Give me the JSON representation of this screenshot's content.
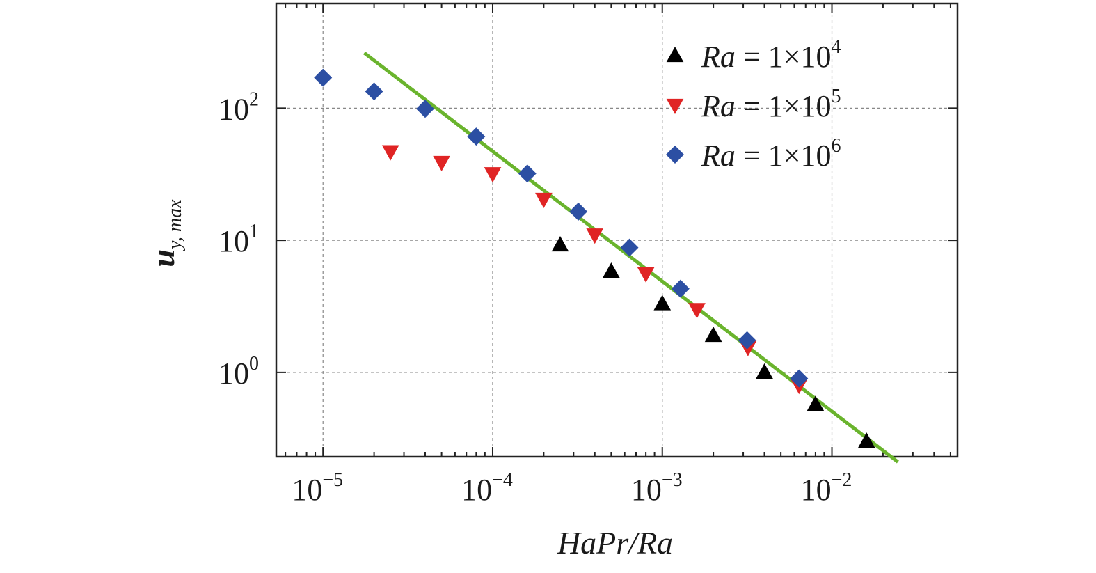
{
  "chart_data": {
    "type": "scatter",
    "xlabel": "HaPr/Ra",
    "ylabel_main": "u",
    "ylabel_sub": "y, max",
    "x_scale": "log",
    "y_scale": "log",
    "xlim": [
      5.3e-06,
      0.055
    ],
    "ylim": [
      0.23,
      620
    ],
    "x_ticks": [
      {
        "value": 1e-05,
        "base": "10",
        "exp": "−5"
      },
      {
        "value": 0.0001,
        "base": "10",
        "exp": "−4"
      },
      {
        "value": 0.001,
        "base": "10",
        "exp": "−3"
      },
      {
        "value": 0.01,
        "base": "10",
        "exp": "−2"
      }
    ],
    "y_ticks": [
      {
        "value": 1,
        "base": "10",
        "exp": "0"
      },
      {
        "value": 10,
        "base": "10",
        "exp": "1"
      },
      {
        "value": 100,
        "base": "10",
        "exp": "2"
      }
    ],
    "grid": true,
    "legend_position": "top-right",
    "series": [
      {
        "name_prefix": "Ra",
        "name_rest": " = 1×10",
        "name_exp": "4",
        "marker": "triangle-up",
        "color": "#000000",
        "x": [
          0.00025,
          0.0005,
          0.001,
          0.002,
          0.004,
          0.008,
          0.016
        ],
        "y": [
          9.2,
          5.8,
          3.3,
          1.9,
          1.0,
          0.57,
          0.3
        ]
      },
      {
        "name_prefix": "Ra",
        "name_rest": " = 1×10",
        "name_exp": "5",
        "marker": "triangle-down",
        "color": "#e02424",
        "x": [
          2.5e-05,
          5e-05,
          0.0001,
          0.0002,
          0.0004,
          0.0008,
          0.0016,
          0.0032,
          0.0064
        ],
        "y": [
          47,
          39,
          32,
          20.5,
          11,
          5.6,
          3.0,
          1.55,
          0.8
        ]
      },
      {
        "name_prefix": "Ra",
        "name_rest": " = 1×10",
        "name_exp": "6",
        "marker": "diamond",
        "color": "#2c4fa3",
        "x": [
          1e-05,
          2e-05,
          4e-05,
          8e-05,
          0.00016,
          0.00032,
          0.00064,
          0.00128,
          0.00316,
          0.0064
        ],
        "y": [
          170,
          134,
          99,
          61,
          32,
          16.5,
          8.8,
          4.3,
          1.75,
          0.9
        ]
      }
    ],
    "fit_line": {
      "color": "#6ab42d",
      "x": [
        1.75e-05,
        0.0245
      ],
      "y": [
        262,
        0.21
      ]
    }
  }
}
